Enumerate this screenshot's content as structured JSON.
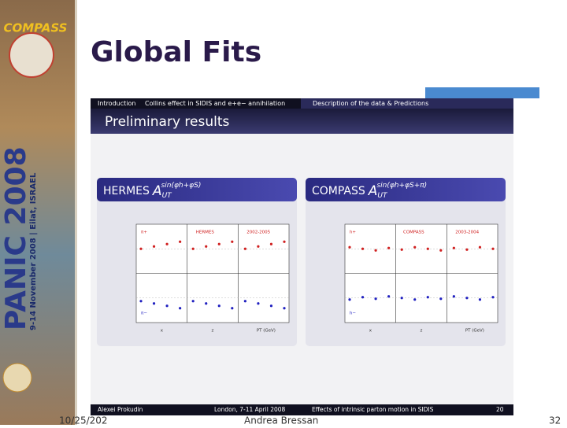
{
  "sidebar": {
    "logo": "COMPASS",
    "conference": "PANIC 2008",
    "dates": "9-14 November 2008 | Eilat, ISRAEL"
  },
  "header": {
    "title": "Global Fits"
  },
  "inner_slide": {
    "nav": [
      "Introduction",
      "Collins effect in SIDIS and e+e− annihilation",
      "Description of the data & Predictions"
    ],
    "heading": "Preliminary results",
    "panels": [
      {
        "experiment": "HERMES",
        "symbol": "A",
        "sub": "UT",
        "sup": "sin(φh+φS)",
        "plot_labels": [
          "π+",
          "HERMES",
          "2002-2005",
          "π−",
          "x",
          "z",
          "PT (GeV)"
        ]
      },
      {
        "experiment": "COMPASS",
        "symbol": "A",
        "sub": "UT",
        "sup": "sin(φh+φS+π)",
        "plot_labels": [
          "h+",
          "COMPASS",
          "2003-2004",
          "h−",
          "x",
          "z",
          "PT (GeV)"
        ]
      }
    ],
    "footer": {
      "author": "Alexei Prokudin",
      "event": "London, 7-11 April 2008",
      "talk": "Effects of intrinsic parton motion in SIDIS",
      "page": "20"
    }
  },
  "footer": {
    "date": "10/25/202",
    "presenter": "Andrea Bressan",
    "page": "32"
  }
}
